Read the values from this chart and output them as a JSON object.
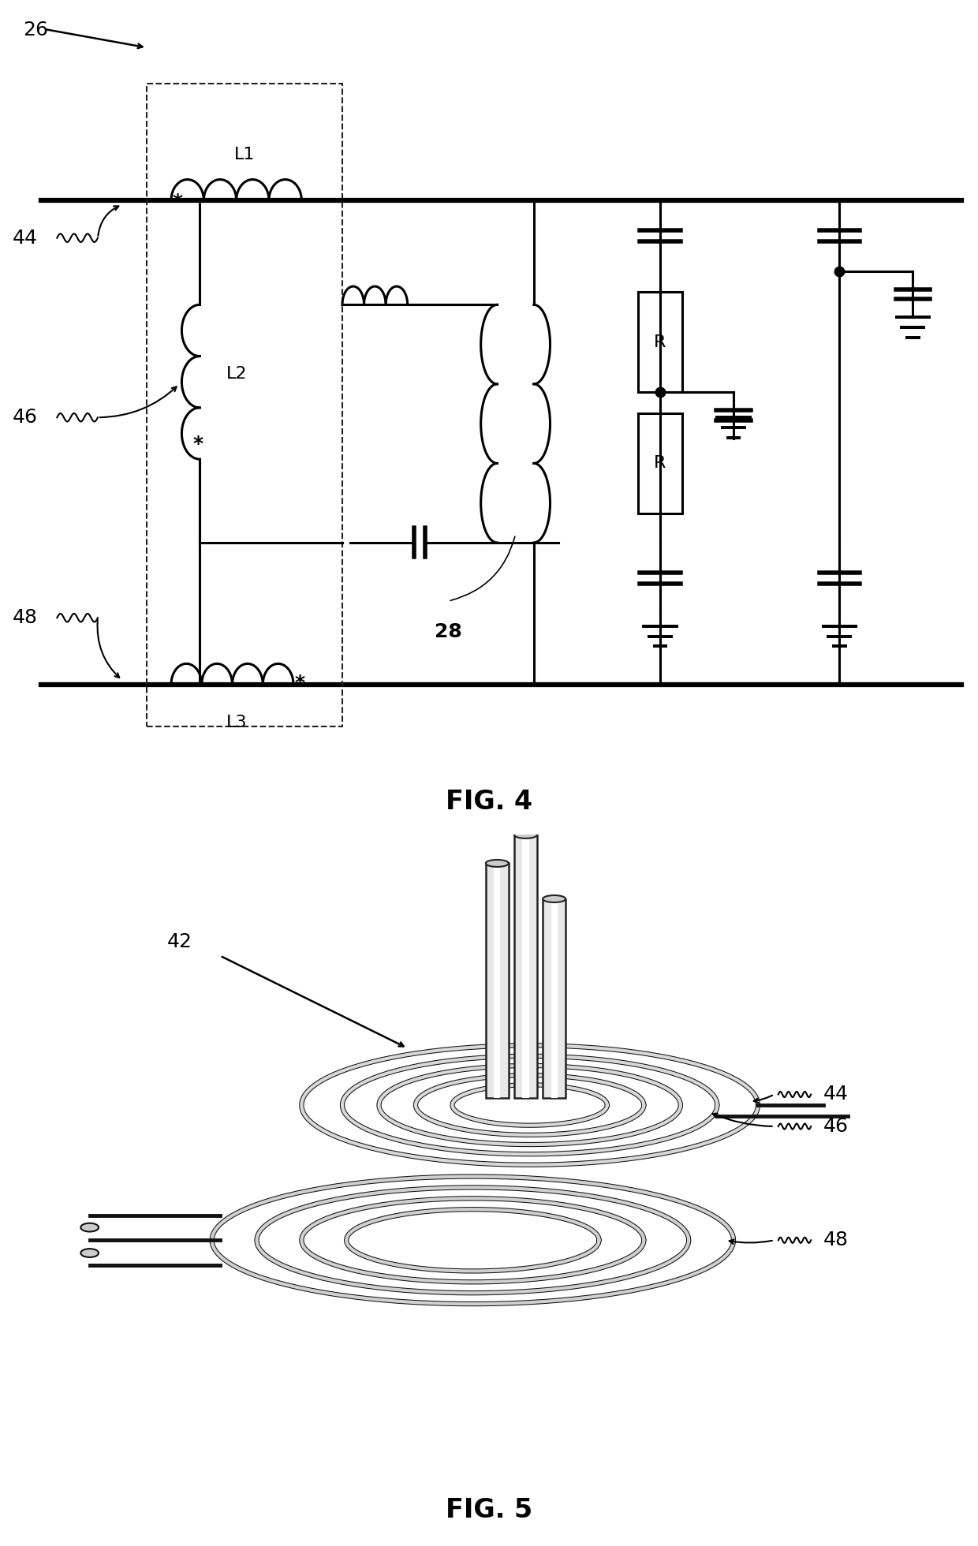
{
  "fig4_title": "FIG. 4",
  "fig5_title": "FIG. 5",
  "label_26": "26",
  "label_42": "42",
  "label_44": "44",
  "label_46": "46",
  "label_48": "48",
  "label_28": "28",
  "label_L1": "L1",
  "label_L2": "L2",
  "label_L3": "L3",
  "label_R": "R",
  "bg_color": "#ffffff",
  "line_color": "#000000",
  "fig_label_fontsize": 24,
  "annotation_fontsize": 18,
  "component_fontsize": 16
}
